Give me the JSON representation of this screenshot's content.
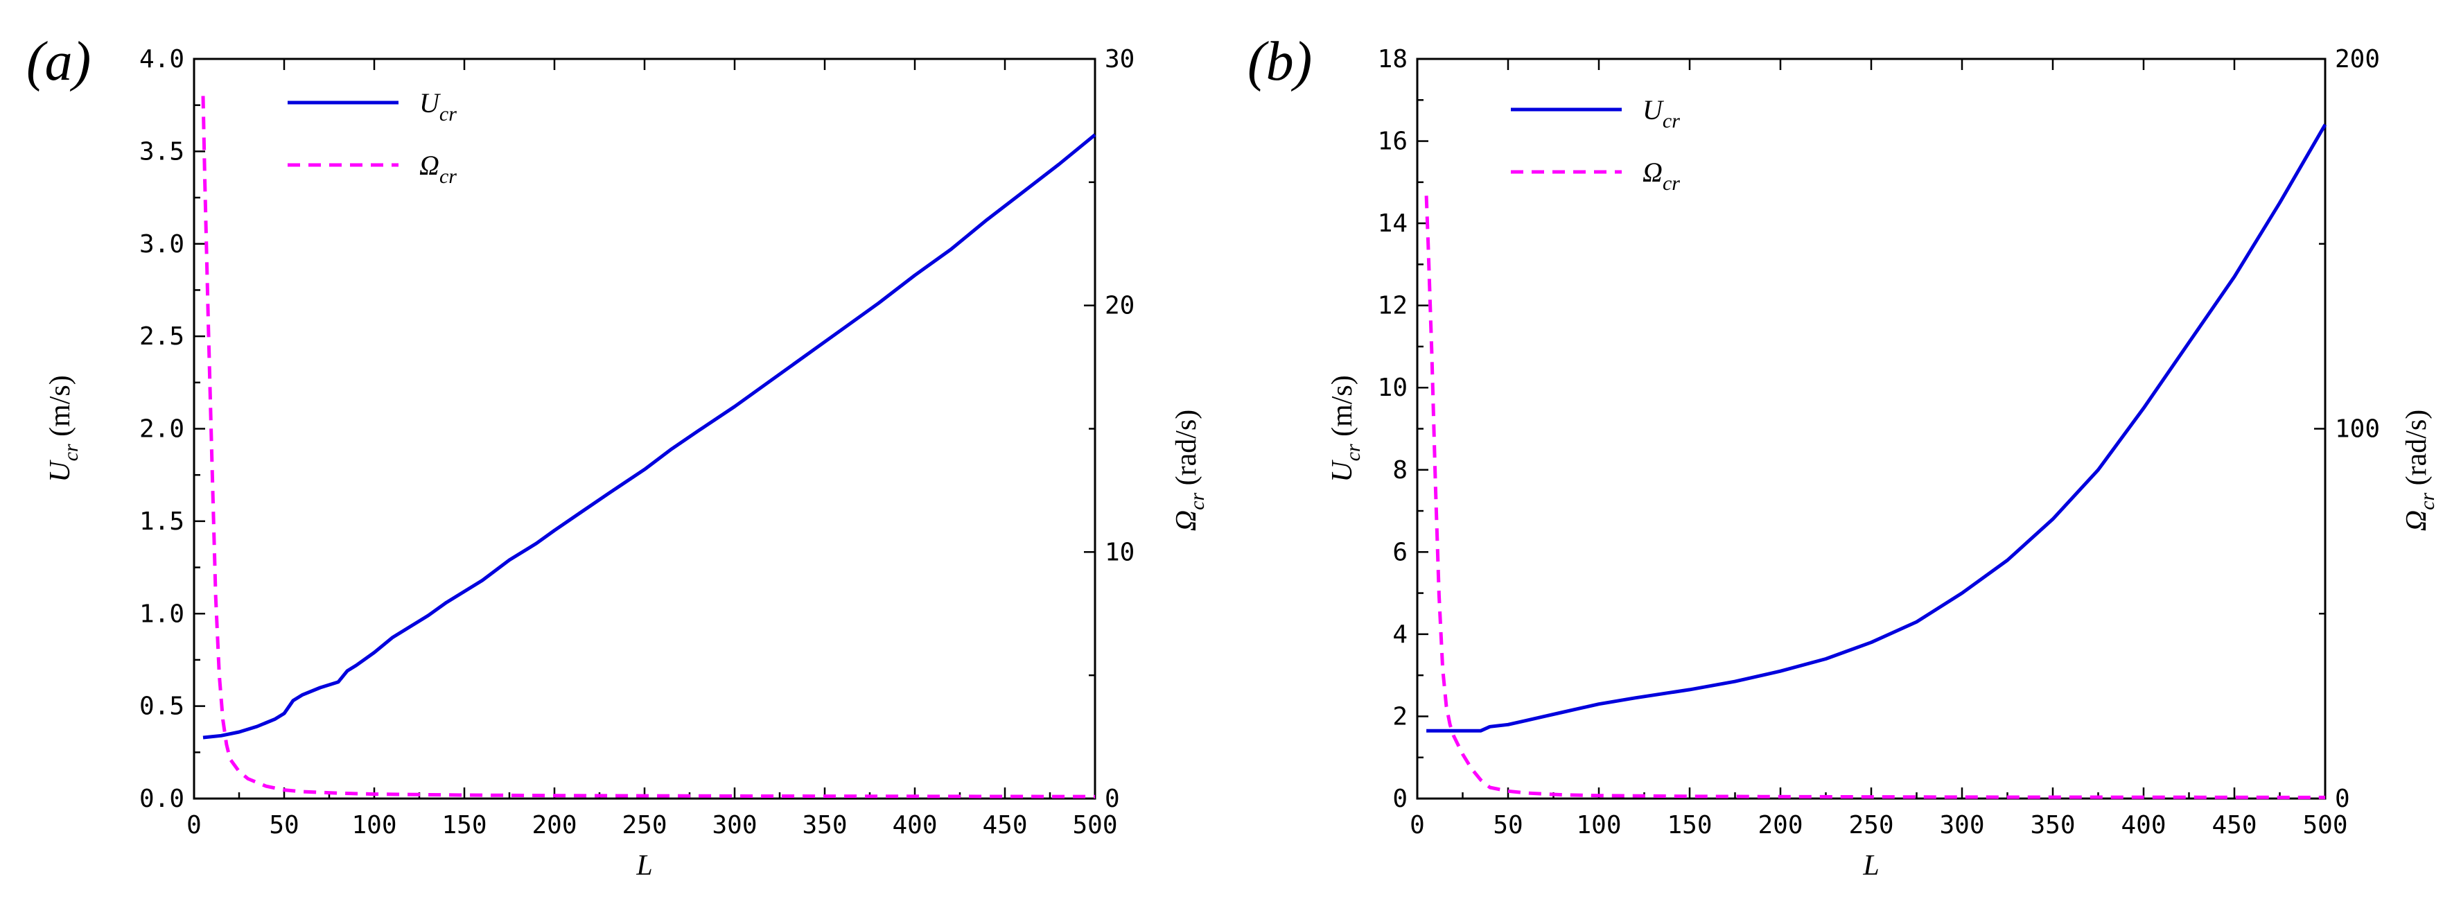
{
  "colors": {
    "primary": "#0000dd",
    "secondary": "#ff00ff",
    "axis": "#000000"
  },
  "chart_data": [
    {
      "panel_label": "(a)",
      "type": "line",
      "xlabel": "L",
      "ylabel_left": {
        "main": "U",
        "sub": "cr",
        "unit": " (m/s)"
      },
      "ylabel_right": {
        "main": "Ω",
        "sub": "cr",
        "unit": " (rad/s)"
      },
      "xlim": [
        0,
        500
      ],
      "ylim_left": [
        0,
        4
      ],
      "ylim_right": [
        0,
        30
      ],
      "x_ticks": [
        0,
        50,
        100,
        150,
        200,
        250,
        300,
        350,
        400,
        450,
        500
      ],
      "y_left_ticks": [
        "0.0",
        "0.5",
        "1.0",
        "1.5",
        "2.0",
        "2.5",
        "3.0",
        "3.5",
        "4.0"
      ],
      "y_right_ticks": [
        "0",
        "10",
        "20",
        "30"
      ],
      "legend": [
        {
          "main": "U",
          "sub": "cr",
          "style": "solid"
        },
        {
          "main": "Ω",
          "sub": "cr",
          "style": "dashed"
        }
      ],
      "series": [
        {
          "name": "U_cr",
          "axis": "left",
          "style": "solid",
          "x": [
            5,
            15,
            25,
            35,
            45,
            50,
            55,
            60,
            70,
            80,
            85,
            90,
            100,
            110,
            120,
            130,
            140,
            150,
            160,
            175,
            190,
            200,
            215,
            230,
            250,
            265,
            280,
            300,
            320,
            340,
            360,
            380,
            400,
            420,
            440,
            460,
            480,
            500
          ],
          "values": [
            0.33,
            0.34,
            0.36,
            0.39,
            0.43,
            0.46,
            0.53,
            0.56,
            0.6,
            0.63,
            0.69,
            0.72,
            0.79,
            0.87,
            0.93,
            0.99,
            1.06,
            1.12,
            1.18,
            1.29,
            1.38,
            1.45,
            1.55,
            1.65,
            1.78,
            1.89,
            1.99,
            2.12,
            2.26,
            2.4,
            2.54,
            2.68,
            2.83,
            2.97,
            3.13,
            3.28,
            3.43,
            3.59
          ]
        },
        {
          "name": "Ω_cr",
          "axis": "right",
          "style": "dashed",
          "x": [
            5,
            6,
            8,
            10,
            12,
            14,
            16,
            18,
            20,
            25,
            30,
            40,
            50,
            60,
            80,
            100,
            150,
            200,
            300,
            400,
            500
          ],
          "values": [
            28.5,
            25.0,
            19.0,
            13.5,
            8.2,
            5.0,
            3.2,
            2.2,
            1.6,
            1.1,
            0.8,
            0.5,
            0.35,
            0.28,
            0.22,
            0.18,
            0.14,
            0.12,
            0.1,
            0.09,
            0.08
          ]
        }
      ]
    },
    {
      "panel_label": "(b)",
      "type": "line",
      "xlabel": "L",
      "ylabel_left": {
        "main": "U",
        "sub": "cr",
        "unit": " (m/s)"
      },
      "ylabel_right": {
        "main": "Ω",
        "sub": "cr",
        "unit": " (rad/s)"
      },
      "xlim": [
        0,
        500
      ],
      "ylim_left": [
        0,
        18
      ],
      "ylim_right": [
        0,
        200
      ],
      "x_ticks": [
        0,
        50,
        100,
        150,
        200,
        250,
        300,
        350,
        400,
        450,
        500
      ],
      "y_left_ticks": [
        "0",
        "2",
        "4",
        "6",
        "8",
        "10",
        "12",
        "14",
        "16",
        "18"
      ],
      "y_right_ticks": [
        "0",
        "100",
        "200"
      ],
      "legend": [
        {
          "main": "U",
          "sub": "cr",
          "style": "solid"
        },
        {
          "main": "Ω",
          "sub": "cr",
          "style": "dashed"
        }
      ],
      "series": [
        {
          "name": "U_cr",
          "axis": "left",
          "style": "solid",
          "x": [
            5,
            15,
            25,
            35,
            40,
            50,
            60,
            70,
            80,
            90,
            100,
            120,
            150,
            175,
            200,
            225,
            250,
            275,
            300,
            325,
            350,
            375,
            400,
            425,
            450,
            475,
            500
          ],
          "values": [
            1.65,
            1.65,
            1.65,
            1.65,
            1.75,
            1.8,
            1.9,
            2.0,
            2.1,
            2.2,
            2.3,
            2.45,
            2.65,
            2.85,
            3.1,
            3.4,
            3.8,
            4.3,
            5.0,
            5.8,
            6.8,
            8.0,
            9.5,
            11.1,
            12.7,
            14.5,
            16.4
          ]
        },
        {
          "name": "Ω_cr",
          "axis": "right",
          "style": "dashed",
          "x": [
            5,
            6,
            8,
            10,
            12,
            14,
            16,
            18,
            20,
            25,
            30,
            35,
            40,
            50,
            60,
            80,
            100,
            150,
            200,
            300,
            400,
            500
          ],
          "values": [
            163,
            150,
            120,
            85,
            55,
            35,
            25,
            20,
            17,
            12,
            8,
            5,
            3,
            2,
            1.5,
            1.0,
            0.8,
            0.6,
            0.5,
            0.4,
            0.35,
            0.3
          ]
        }
      ]
    }
  ]
}
